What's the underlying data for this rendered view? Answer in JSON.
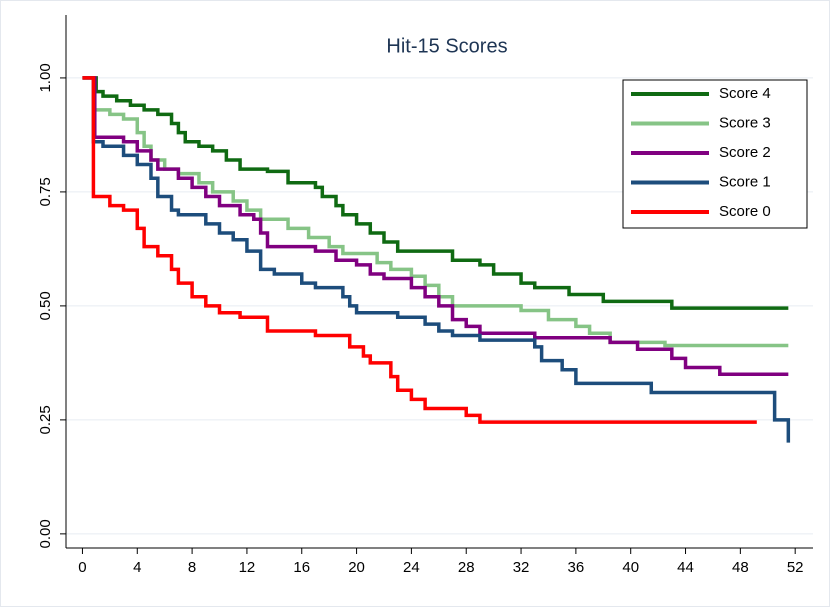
{
  "chart_data": {
    "type": "line",
    "line_style": "step",
    "title": "Hit-15 Scores",
    "xlim": [
      -1.2,
      53.3
    ],
    "ylim": [
      -0.031,
      1.138
    ],
    "xticks": [
      0,
      4,
      8,
      12,
      16,
      20,
      24,
      28,
      32,
      36,
      40,
      44,
      48,
      52
    ],
    "yticks": [
      {
        "value": 0,
        "label": "0.00"
      },
      {
        "value": 0.25,
        "label": "0.25"
      },
      {
        "value": 0.5,
        "label": "0.50"
      },
      {
        "value": 0.75,
        "label": "0.75"
      },
      {
        "value": 1,
        "label": "1.00"
      }
    ],
    "grid": true,
    "legend": "top-right",
    "series": [
      {
        "name": "Score 4",
        "color": "#0f6a12",
        "x": [
          0,
          1,
          1.5,
          2.5,
          3.5,
          4.5,
          5.5,
          6.5,
          7,
          7.5,
          8.5,
          9.5,
          10.5,
          11.5,
          13.5,
          15,
          17,
          17.5,
          18.5,
          19,
          20,
          21,
          22,
          23,
          27,
          29,
          30,
          32,
          33,
          35.5,
          38,
          43,
          51.5
        ],
        "values": [
          1.0,
          0.97,
          0.96,
          0.95,
          0.94,
          0.93,
          0.92,
          0.9,
          0.88,
          0.86,
          0.85,
          0.84,
          0.82,
          0.8,
          0.795,
          0.77,
          0.76,
          0.74,
          0.72,
          0.7,
          0.68,
          0.66,
          0.64,
          0.62,
          0.6,
          0.59,
          0.57,
          0.55,
          0.54,
          0.525,
          0.51,
          0.495,
          0.495
        ]
      },
      {
        "name": "Score 3",
        "color": "#86c486",
        "x": [
          0,
          0.9,
          2,
          3,
          4,
          4.5,
          5,
          6,
          7,
          8.5,
          9.5,
          11,
          12,
          13,
          15,
          16.5,
          18,
          19,
          21.5,
          22.5,
          24,
          25,
          26,
          27,
          32,
          34,
          36,
          37,
          38.5,
          42.5,
          51.5
        ],
        "values": [
          1.0,
          0.93,
          0.92,
          0.91,
          0.88,
          0.85,
          0.82,
          0.8,
          0.79,
          0.77,
          0.75,
          0.73,
          0.71,
          0.69,
          0.67,
          0.65,
          0.63,
          0.615,
          0.595,
          0.58,
          0.565,
          0.545,
          0.52,
          0.5,
          0.49,
          0.47,
          0.455,
          0.44,
          0.42,
          0.413,
          0.413
        ]
      },
      {
        "name": "Score 2",
        "color": "#800080",
        "x": [
          0,
          0.9,
          3,
          4,
          5,
          5.5,
          7,
          8,
          9,
          10,
          11.5,
          12.5,
          13,
          13.5,
          17,
          18.5,
          20,
          21,
          22,
          24,
          25,
          26,
          27,
          28,
          29,
          33,
          38.5,
          40.5,
          43,
          44,
          46.5,
          51.5
        ],
        "values": [
          1.0,
          0.87,
          0.86,
          0.84,
          0.82,
          0.8,
          0.78,
          0.76,
          0.74,
          0.72,
          0.7,
          0.69,
          0.66,
          0.63,
          0.62,
          0.6,
          0.59,
          0.57,
          0.56,
          0.54,
          0.52,
          0.5,
          0.47,
          0.455,
          0.44,
          0.43,
          0.42,
          0.405,
          0.385,
          0.365,
          0.35,
          0.35
        ]
      },
      {
        "name": "Score 1",
        "color": "#1d4d7c",
        "x": [
          0,
          0.8,
          1.5,
          3,
          4,
          5,
          5.5,
          6.5,
          7,
          9,
          10,
          11,
          12,
          13,
          14,
          16,
          17,
          19,
          19.5,
          20,
          23,
          25,
          26,
          27,
          29,
          33,
          33.5,
          35,
          36,
          41.5,
          50.5,
          51.5
        ],
        "values": [
          1.0,
          0.86,
          0.85,
          0.83,
          0.81,
          0.78,
          0.74,
          0.71,
          0.7,
          0.68,
          0.66,
          0.645,
          0.62,
          0.58,
          0.57,
          0.55,
          0.54,
          0.52,
          0.5,
          0.485,
          0.475,
          0.46,
          0.445,
          0.435,
          0.425,
          0.41,
          0.38,
          0.36,
          0.33,
          0.31,
          0.25,
          0.2
        ]
      },
      {
        "name": "Score 0",
        "color": "#ff0000",
        "x": [
          0,
          0.8,
          2,
          3,
          4,
          4.5,
          5.5,
          6.5,
          7,
          8,
          9,
          10,
          11.5,
          13.5,
          17,
          19.5,
          20.5,
          21,
          22.5,
          23,
          24,
          25,
          28,
          29,
          49.2
        ],
        "values": [
          1.0,
          0.74,
          0.72,
          0.71,
          0.67,
          0.63,
          0.61,
          0.58,
          0.55,
          0.52,
          0.5,
          0.485,
          0.475,
          0.445,
          0.435,
          0.41,
          0.39,
          0.375,
          0.345,
          0.315,
          0.295,
          0.275,
          0.26,
          0.245,
          0.245
        ]
      }
    ]
  }
}
